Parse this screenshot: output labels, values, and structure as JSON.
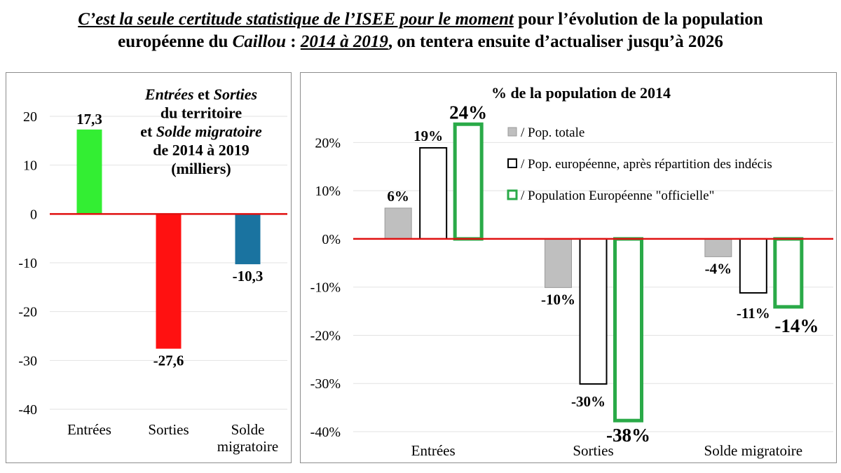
{
  "header": {
    "part1": "C’est la seule certitude statistique de l’ISEE pour le moment",
    "part2": " pour l’évolution de la population",
    "part3": "européenne du ",
    "part4": "Caillou",
    "part5": " : ",
    "part6": "2014 à 2019",
    "part7": ", on tentera ensuite d’actualiser jusqu’à 2026"
  },
  "chart_data": [
    {
      "type": "bar",
      "title_lines": [
        [
          {
            "t": "Entrées",
            "i": true
          },
          {
            "t": " et ",
            "i": false
          },
          {
            "t": "Sorties",
            "i": true
          }
        ],
        [
          {
            "t": "du territoire",
            "i": false
          }
        ],
        [
          {
            "t": "et ",
            "i": false
          },
          {
            "t": "Solde migratoire",
            "i": true
          }
        ],
        [
          {
            "t": "de 2014 à 2019",
            "i": false
          }
        ],
        [
          {
            "t": "(milliers)",
            "i": false
          }
        ]
      ],
      "categories": [
        [
          "Entrées"
        ],
        [
          "Sorties"
        ],
        [
          "Solde",
          "migratoire"
        ]
      ],
      "values": [
        17.3,
        -27.6,
        -10.3
      ],
      "labels": [
        "17,3",
        "-27,6",
        "-10,3"
      ],
      "colors": [
        "#33ee33",
        "#ff1111",
        "#1a73a0"
      ],
      "ylim": [
        -40,
        20
      ],
      "ticks": [
        20,
        10,
        0,
        -10,
        -20,
        -30,
        -40
      ],
      "tick_labels": [
        "20",
        "10",
        "0",
        "-10",
        "-20",
        "-30",
        "-40"
      ],
      "grid": true,
      "zero_line_color": "#e01010"
    },
    {
      "type": "bar",
      "title": "% de la population de 2014",
      "categories": [
        "Entrées",
        "Sorties",
        "Solde migratoire"
      ],
      "series": [
        {
          "name": "/ Pop. totale",
          "values": [
            6.4,
            -10.1,
            -3.7
          ],
          "labels": [
            "6%",
            "-10%",
            "-4%"
          ],
          "style": "gray"
        },
        {
          "name": "/ Pop. européenne, après répartition des indécis",
          "values": [
            18.9,
            -30.1,
            -11.2
          ],
          "labels": [
            "19%",
            "-30%",
            "-11%"
          ],
          "style": "outline-black"
        },
        {
          "name": "/ Population  Européenne \"officielle\"",
          "values": [
            23.8,
            -37.7,
            -14.1
          ],
          "labels": [
            "24%",
            "-38%",
            "-14%"
          ],
          "style": "outline-green"
        }
      ],
      "ylim": [
        -40,
        25
      ],
      "ticks": [
        20,
        10,
        0,
        -10,
        -20,
        -30,
        -40
      ],
      "tick_labels": [
        "20%",
        "10%",
        "0%",
        "-10%",
        "-20%",
        "-30%",
        "-40%"
      ],
      "grid": true,
      "legend_position": "top-right",
      "zero_line_color": "#e01010"
    }
  ]
}
